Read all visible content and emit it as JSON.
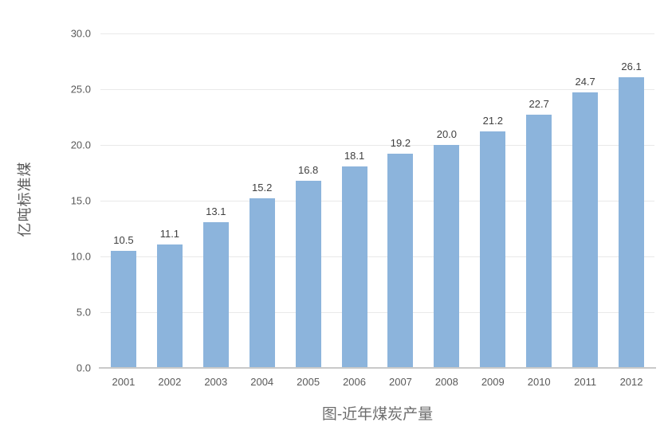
{
  "chart_data": {
    "type": "bar",
    "title": "图-近年煤炭产量",
    "ylabel": "亿吨标准煤",
    "xlabel": "",
    "categories": [
      "2001",
      "2002",
      "2003",
      "2004",
      "2005",
      "2006",
      "2007",
      "2008",
      "2009",
      "2010",
      "2011",
      "2012"
    ],
    "values": [
      10.5,
      11.1,
      13.1,
      15.2,
      16.8,
      18.1,
      19.2,
      20.0,
      21.2,
      22.7,
      24.7,
      26.1
    ],
    "value_labels": [
      "10.5",
      "11.1",
      "13.1",
      "15.2",
      "16.8",
      "18.1",
      "19.2",
      "20.0",
      "21.2",
      "22.7",
      "24.7",
      "26.1"
    ],
    "ylim": [
      0,
      30
    ],
    "ytick_step": 5,
    "ytick_labels": [
      "0.0",
      "5.0",
      "10.0",
      "15.0",
      "20.0",
      "25.0",
      "30.0"
    ],
    "grid": true,
    "legend_position": "none",
    "bar_color": "#8cb4dc",
    "gridline_color": "#e9e9e9",
    "axis_line_color": "#c9c9c9",
    "label_color": "#404040",
    "tick_color": "#595959",
    "title_color": "#6d6d6d"
  }
}
